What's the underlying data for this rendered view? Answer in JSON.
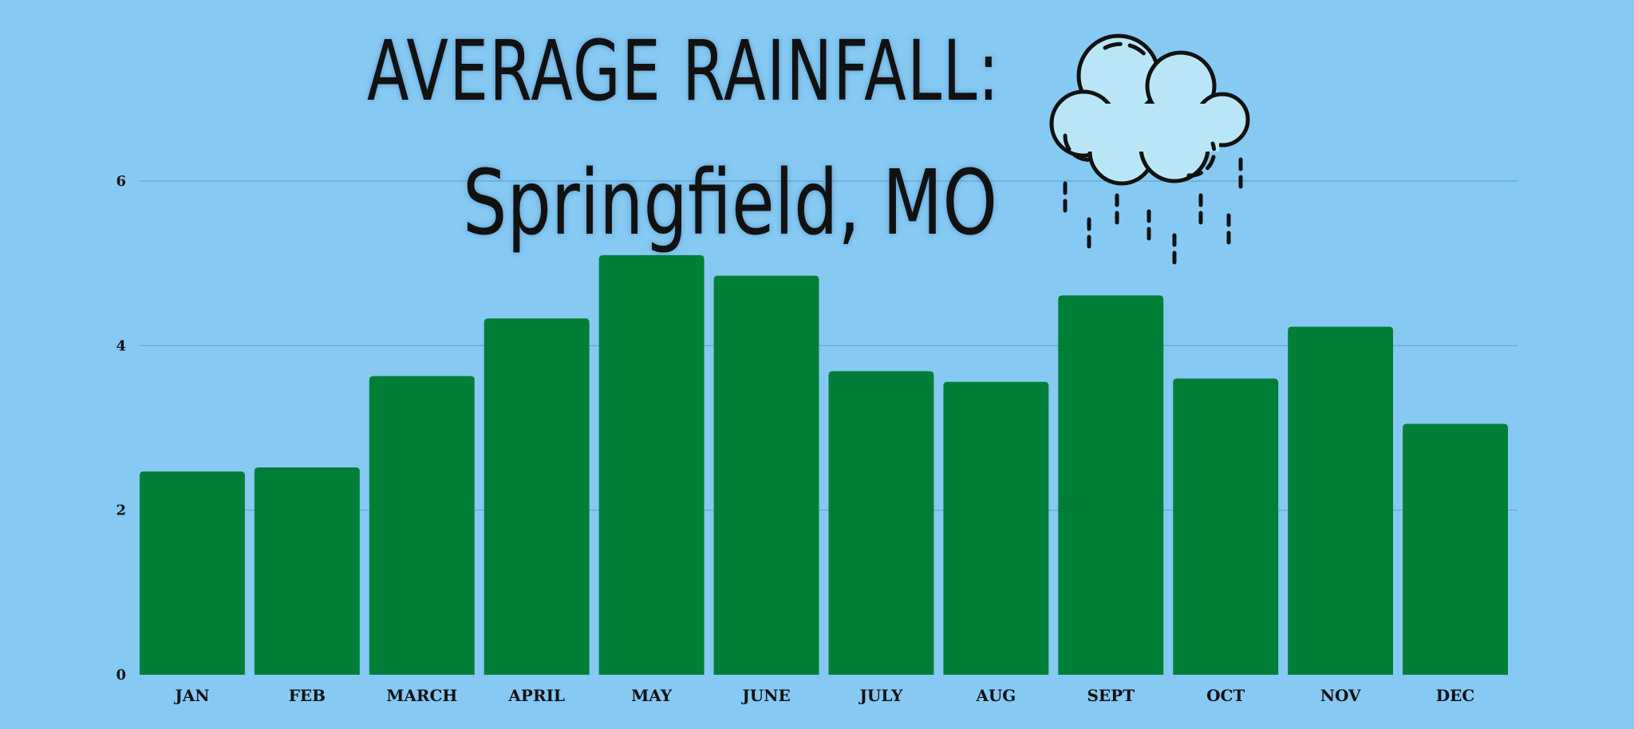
{
  "title": {
    "line1": "AVERAGE RAINFALL:",
    "line2": "Springfield, MO"
  },
  "colors": {
    "background": "#86c9f3",
    "bar": "#017f38",
    "grid": "#5ea6d4",
    "cloud_fill": "#b9e6f6",
    "ink": "#111111"
  },
  "icons": {
    "cloud": "rain-cloud-icon"
  },
  "chart_data": {
    "type": "bar",
    "title": "AVERAGE RAINFALL: Springfield, MO",
    "xlabel": "",
    "ylabel": "",
    "categories": [
      "JAN",
      "FEB",
      "MARCH",
      "APRIL",
      "MAY",
      "JUNE",
      "JULY",
      "AUG",
      "SEPT",
      "OCT",
      "NOV",
      "DEC"
    ],
    "values": [
      2.47,
      2.52,
      3.63,
      4.33,
      5.1,
      4.85,
      3.69,
      3.56,
      4.61,
      3.6,
      4.23,
      3.05
    ],
    "ylim": [
      0,
      6
    ],
    "yticks": [
      0,
      2,
      4,
      6
    ],
    "grid": true,
    "legend": "none"
  }
}
